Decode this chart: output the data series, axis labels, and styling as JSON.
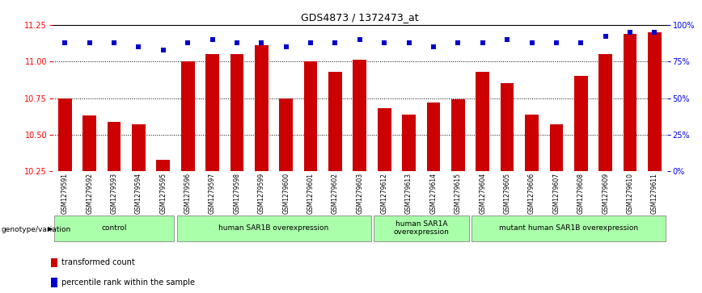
{
  "title": "GDS4873 / 1372473_at",
  "samples": [
    "GSM1279591",
    "GSM1279592",
    "GSM1279593",
    "GSM1279594",
    "GSM1279595",
    "GSM1279596",
    "GSM1279597",
    "GSM1279598",
    "GSM1279599",
    "GSM1279600",
    "GSM1279601",
    "GSM1279602",
    "GSM1279603",
    "GSM1279612",
    "GSM1279613",
    "GSM1279614",
    "GSM1279615",
    "GSM1279604",
    "GSM1279605",
    "GSM1279606",
    "GSM1279607",
    "GSM1279608",
    "GSM1279609",
    "GSM1279610",
    "GSM1279611"
  ],
  "bar_values": [
    10.75,
    10.63,
    10.59,
    10.57,
    10.33,
    11.0,
    11.05,
    11.05,
    11.11,
    10.75,
    11.0,
    10.93,
    11.01,
    10.68,
    10.64,
    10.72,
    10.74,
    10.93,
    10.85,
    10.64,
    10.57,
    10.9,
    11.05,
    11.19,
    11.2
  ],
  "percentile_values": [
    88,
    88,
    88,
    85,
    83,
    88,
    90,
    88,
    88,
    85,
    88,
    88,
    90,
    88,
    88,
    85,
    88,
    88,
    90,
    88,
    88,
    88,
    92,
    95,
    95
  ],
  "ymin": 10.25,
  "ymax": 11.25,
  "yticks": [
    10.25,
    10.5,
    10.75,
    11.0,
    11.25
  ],
  "right_yticks": [
    0,
    25,
    50,
    75,
    100
  ],
  "bar_color": "#CC0000",
  "dot_color": "#0000CC",
  "groups": [
    {
      "label": "control",
      "start": 0,
      "end": 5
    },
    {
      "label": "human SAR1B overexpression",
      "start": 5,
      "end": 13
    },
    {
      "label": "human SAR1A\noverexpression",
      "start": 13,
      "end": 17
    },
    {
      "label": "mutant human SAR1B overexpression",
      "start": 17,
      "end": 25
    }
  ],
  "group_color": "#aaffaa",
  "legend_items": [
    {
      "color": "#CC0000",
      "label": "transformed count"
    },
    {
      "color": "#0000CC",
      "label": "percentile rank within the sample"
    }
  ],
  "genotype_label": "genotype/variation",
  "bar_width": 0.55
}
